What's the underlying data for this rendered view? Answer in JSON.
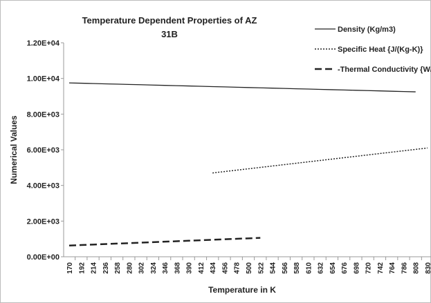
{
  "chart_data": {
    "type": "line",
    "title": "Temperature Dependent Properties of AZ 31B",
    "x_label": "Temperature in K",
    "y_label": "Numerical Values",
    "categories": [
      "170",
      "192",
      "214",
      "236",
      "258",
      "280",
      "302",
      "324",
      "346",
      "368",
      "390",
      "412",
      "434",
      "456",
      "478",
      "500",
      "522",
      "544",
      "566",
      "588",
      "610",
      "632",
      "654",
      "676",
      "698",
      "720",
      "742",
      "764",
      "786",
      "808",
      "830"
    ],
    "series": [
      {
        "name": "Density (Kg/m3)",
        "color": "#222222",
        "style": "solid",
        "values": [
          9750,
          9733,
          9716,
          9698,
          9681,
          9664,
          9647,
          9629,
          9612,
          9595,
          9578,
          9560,
          9543,
          9526,
          9509,
          9491,
          9474,
          9457,
          9440,
          9422,
          9405,
          9388,
          9371,
          9353,
          9336,
          9319,
          9302,
          9284,
          9267,
          9250,
          null
        ]
      },
      {
        "name": "Specific Heat {J/(Kg-K)}",
        "color": "#222222",
        "style": "dotted",
        "values": [
          null,
          null,
          null,
          null,
          null,
          null,
          null,
          null,
          null,
          null,
          null,
          null,
          4700,
          4778,
          4856,
          4933,
          5011,
          5089,
          5167,
          5244,
          5322,
          5400,
          5478,
          5556,
          5633,
          5711,
          5789,
          5867,
          5944,
          6022,
          6100
        ]
      },
      {
        "name": "-Thermal Conductivity {W/(m-K)}",
        "color": "#222222",
        "style": "dashed",
        "values": [
          630,
          657,
          684,
          711,
          738,
          764,
          791,
          818,
          845,
          872,
          899,
          926,
          953,
          980,
          1006,
          1033,
          1060,
          null,
          null,
          null,
          null,
          null,
          null,
          null,
          null,
          null,
          null,
          null,
          null,
          null,
          null
        ]
      }
    ],
    "ylim": [
      0,
      12000
    ],
    "yticks": [
      {
        "value": 0,
        "label": "0.00E+00"
      },
      {
        "value": 2000,
        "label": "2.00E+03"
      },
      {
        "value": 4000,
        "label": "4.00E+03"
      },
      {
        "value": 6000,
        "label": "6.00E+03"
      },
      {
        "value": 8000,
        "label": "8.00E+03"
      },
      {
        "value": 10000,
        "label": "1.00E+04"
      },
      {
        "value": 12000,
        "label": "1.20E+04"
      }
    ],
    "grid": false,
    "legend": "top-right"
  }
}
